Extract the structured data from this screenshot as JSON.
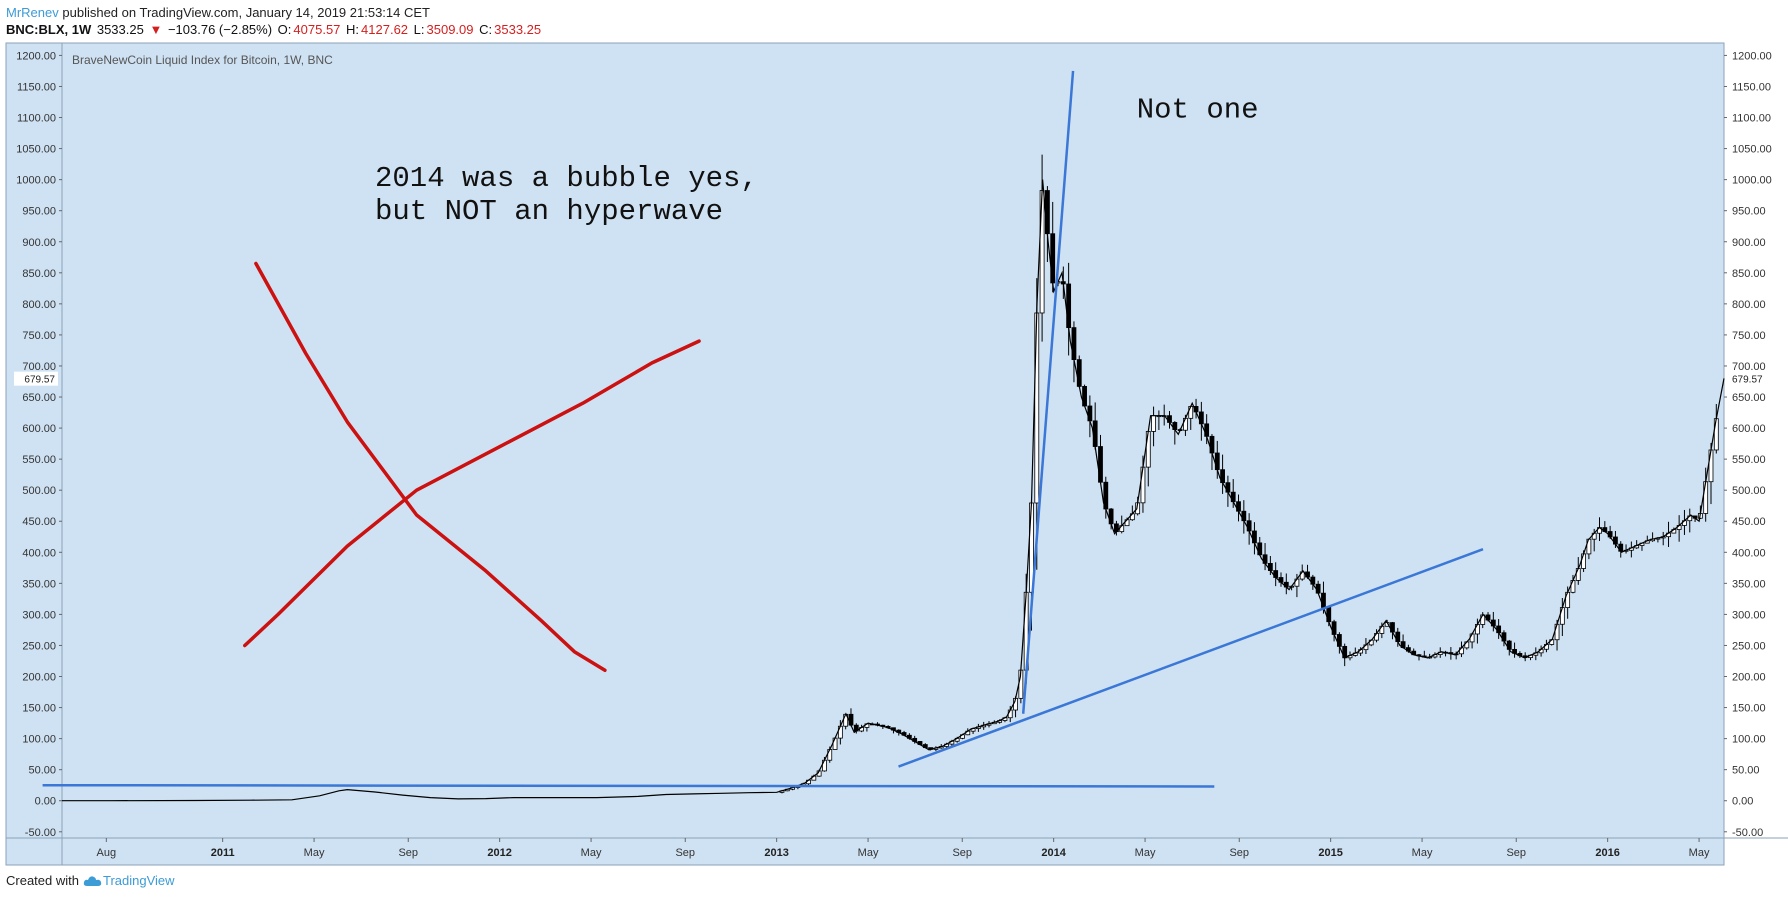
{
  "header": {
    "author": "MrRenev",
    "published_text": "published on TradingView.com, January 14, 2019 21:53:14 CET",
    "symbol": "BNC:BLX, 1W",
    "last": "3533.25",
    "change_arrow": "▼",
    "change": "−103.76 (−2.85%)",
    "o_label": "O:",
    "o_value": "4075.57",
    "h_label": "H:",
    "h_value": "4127.62",
    "l_label": "L:",
    "l_value": "3509.09",
    "c_label": "C:",
    "c_value": "3533.25"
  },
  "footer": {
    "created_with": "Created with",
    "brand": "TradingView"
  },
  "colors": {
    "plot_bg": "#cfe2f3",
    "trendline": "#3a77d6",
    "cross": "#cc1111",
    "candle": "#000000",
    "accent": "#3d9bd6"
  },
  "chart_data": {
    "type": "candlestick",
    "title": "BraveNewCoin Liquid Index for Bitcoin, 1W, BNC",
    "ylim": [
      -60,
      1220
    ],
    "y_ticks": [
      "1200.00",
      "1150.00",
      "1100.00",
      "1050.00",
      "1000.00",
      "950.00",
      "900.00",
      "850.00",
      "800.00",
      "750.00",
      "700.00",
      "650.00",
      "600.00",
      "550.00",
      "500.00",
      "450.00",
      "400.00",
      "350.00",
      "300.00",
      "250.00",
      "200.00",
      "150.00",
      "100.00",
      "50.00",
      "0.00",
      "-50.00"
    ],
    "y_tick_values": [
      1200,
      1150,
      1100,
      1050,
      1000,
      950,
      900,
      850,
      800,
      750,
      700,
      650,
      600,
      550,
      500,
      450,
      400,
      350,
      300,
      250,
      200,
      150,
      100,
      50,
      0,
      -50
    ],
    "x_range": [
      "2010-06",
      "2016-05"
    ],
    "x_ticks": [
      {
        "label": "Aug",
        "t": 2010.58,
        "bold": false
      },
      {
        "label": "2011",
        "t": 2011.0,
        "bold": true
      },
      {
        "label": "May",
        "t": 2011.33,
        "bold": false
      },
      {
        "label": "Sep",
        "t": 2011.67,
        "bold": false
      },
      {
        "label": "2012",
        "t": 2012.0,
        "bold": true
      },
      {
        "label": "May",
        "t": 2012.33,
        "bold": false
      },
      {
        "label": "Sep",
        "t": 2012.67,
        "bold": false
      },
      {
        "label": "2013",
        "t": 2013.0,
        "bold": true
      },
      {
        "label": "May",
        "t": 2013.33,
        "bold": false
      },
      {
        "label": "Sep",
        "t": 2013.67,
        "bold": false
      },
      {
        "label": "2014",
        "t": 2014.0,
        "bold": true
      },
      {
        "label": "May",
        "t": 2014.33,
        "bold": false
      },
      {
        "label": "Sep",
        "t": 2014.67,
        "bold": false
      },
      {
        "label": "2015",
        "t": 2015.0,
        "bold": true
      },
      {
        "label": "May",
        "t": 2015.33,
        "bold": false
      },
      {
        "label": "Sep",
        "t": 2015.67,
        "bold": false
      },
      {
        "label": "2016",
        "t": 2016.0,
        "bold": true
      },
      {
        "label": "May",
        "t": 2016.33,
        "bold": false
      }
    ],
    "price_label": "679.57",
    "price_value": 679.57,
    "price_path": [
      [
        2010.42,
        0.1
      ],
      [
        2010.6,
        0.1
      ],
      [
        2010.9,
        0.3
      ],
      [
        2011.1,
        0.9
      ],
      [
        2011.25,
        1.5
      ],
      [
        2011.35,
        8
      ],
      [
        2011.42,
        16
      ],
      [
        2011.45,
        18
      ],
      [
        2011.55,
        14
      ],
      [
        2011.65,
        9
      ],
      [
        2011.75,
        5
      ],
      [
        2011.85,
        3
      ],
      [
        2011.95,
        3.5
      ],
      [
        2012.05,
        5
      ],
      [
        2012.2,
        5
      ],
      [
        2012.35,
        5
      ],
      [
        2012.5,
        7
      ],
      [
        2012.6,
        10
      ],
      [
        2012.7,
        11
      ],
      [
        2012.8,
        12
      ],
      [
        2012.9,
        13
      ],
      [
        2013.0,
        13.5
      ],
      [
        2013.05,
        20
      ],
      [
        2013.1,
        28
      ],
      [
        2013.15,
        45
      ],
      [
        2013.2,
        90
      ],
      [
        2013.25,
        140
      ],
      [
        2013.28,
        110
      ],
      [
        2013.33,
        125
      ],
      [
        2013.4,
        118
      ],
      [
        2013.45,
        108
      ],
      [
        2013.5,
        95
      ],
      [
        2013.55,
        82
      ],
      [
        2013.6,
        88
      ],
      [
        2013.65,
        100
      ],
      [
        2013.7,
        115
      ],
      [
        2013.75,
        122
      ],
      [
        2013.8,
        128
      ],
      [
        2013.83,
        135
      ],
      [
        2013.86,
        160
      ],
      [
        2013.88,
        200
      ],
      [
        2013.9,
        330
      ],
      [
        2013.92,
        480
      ],
      [
        2013.94,
        800
      ],
      [
        2013.96,
        1000
      ],
      [
        2013.98,
        900
      ],
      [
        2014.0,
        820
      ],
      [
        2014.03,
        850
      ],
      [
        2014.06,
        740
      ],
      [
        2014.1,
        650
      ],
      [
        2014.14,
        600
      ],
      [
        2014.18,
        480
      ],
      [
        2014.22,
        430
      ],
      [
        2014.26,
        450
      ],
      [
        2014.3,
        470
      ],
      [
        2014.35,
        620
      ],
      [
        2014.4,
        620
      ],
      [
        2014.45,
        590
      ],
      [
        2014.5,
        640
      ],
      [
        2014.55,
        590
      ],
      [
        2014.6,
        520
      ],
      [
        2014.65,
        480
      ],
      [
        2014.7,
        440
      ],
      [
        2014.75,
        390
      ],
      [
        2014.8,
        360
      ],
      [
        2014.85,
        340
      ],
      [
        2014.9,
        370
      ],
      [
        2014.95,
        340
      ],
      [
        2015.0,
        280
      ],
      [
        2015.05,
        230
      ],
      [
        2015.1,
        240
      ],
      [
        2015.15,
        260
      ],
      [
        2015.2,
        290
      ],
      [
        2015.25,
        250
      ],
      [
        2015.3,
        235
      ],
      [
        2015.35,
        230
      ],
      [
        2015.4,
        240
      ],
      [
        2015.45,
        235
      ],
      [
        2015.5,
        260
      ],
      [
        2015.55,
        300
      ],
      [
        2015.6,
        275
      ],
      [
        2015.65,
        240
      ],
      [
        2015.7,
        230
      ],
      [
        2015.75,
        240
      ],
      [
        2015.8,
        260
      ],
      [
        2015.85,
        330
      ],
      [
        2015.9,
        380
      ],
      [
        2015.93,
        420
      ],
      [
        2015.97,
        440
      ],
      [
        2016.0,
        430
      ],
      [
        2016.05,
        400
      ],
      [
        2016.1,
        410
      ],
      [
        2016.15,
        420
      ],
      [
        2016.2,
        425
      ],
      [
        2016.25,
        440
      ],
      [
        2016.3,
        460
      ],
      [
        2016.33,
        450
      ],
      [
        2016.36,
        530
      ],
      [
        2016.39,
        610
      ],
      [
        2016.42,
        680
      ]
    ],
    "annotations": [
      {
        "text": "2014 was a bubble yes,",
        "t": 2011.55,
        "y": 990
      },
      {
        "text": "but NOT an hyperwave",
        "t": 2011.55,
        "y": 937
      },
      {
        "text": "Not one",
        "t": 2014.3,
        "y": 1100
      }
    ],
    "trendlines": [
      {
        "name": "flat-support",
        "points": [
          [
            2010.35,
            25
          ],
          [
            2014.58,
            23
          ]
        ]
      },
      {
        "name": "rising-support",
        "points": [
          [
            2013.44,
            55
          ],
          [
            2015.55,
            405
          ]
        ]
      },
      {
        "name": "steep-trend",
        "points": [
          [
            2013.89,
            140
          ],
          [
            2014.07,
            1175
          ]
        ]
      }
    ],
    "cross_marks": [
      {
        "name": "red-x-rising",
        "points": [
          [
            2011.08,
            250
          ],
          [
            2011.2,
            300
          ],
          [
            2011.45,
            410
          ],
          [
            2011.7,
            500
          ],
          [
            2012.0,
            570
          ],
          [
            2012.3,
            640
          ],
          [
            2012.55,
            705
          ],
          [
            2012.72,
            740
          ]
        ]
      },
      {
        "name": "red-x-falling",
        "points": [
          [
            2011.12,
            865
          ],
          [
            2011.3,
            720
          ],
          [
            2011.45,
            610
          ],
          [
            2011.7,
            460
          ],
          [
            2011.95,
            370
          ],
          [
            2012.15,
            290
          ],
          [
            2012.27,
            240
          ],
          [
            2012.38,
            210
          ]
        ]
      }
    ]
  }
}
